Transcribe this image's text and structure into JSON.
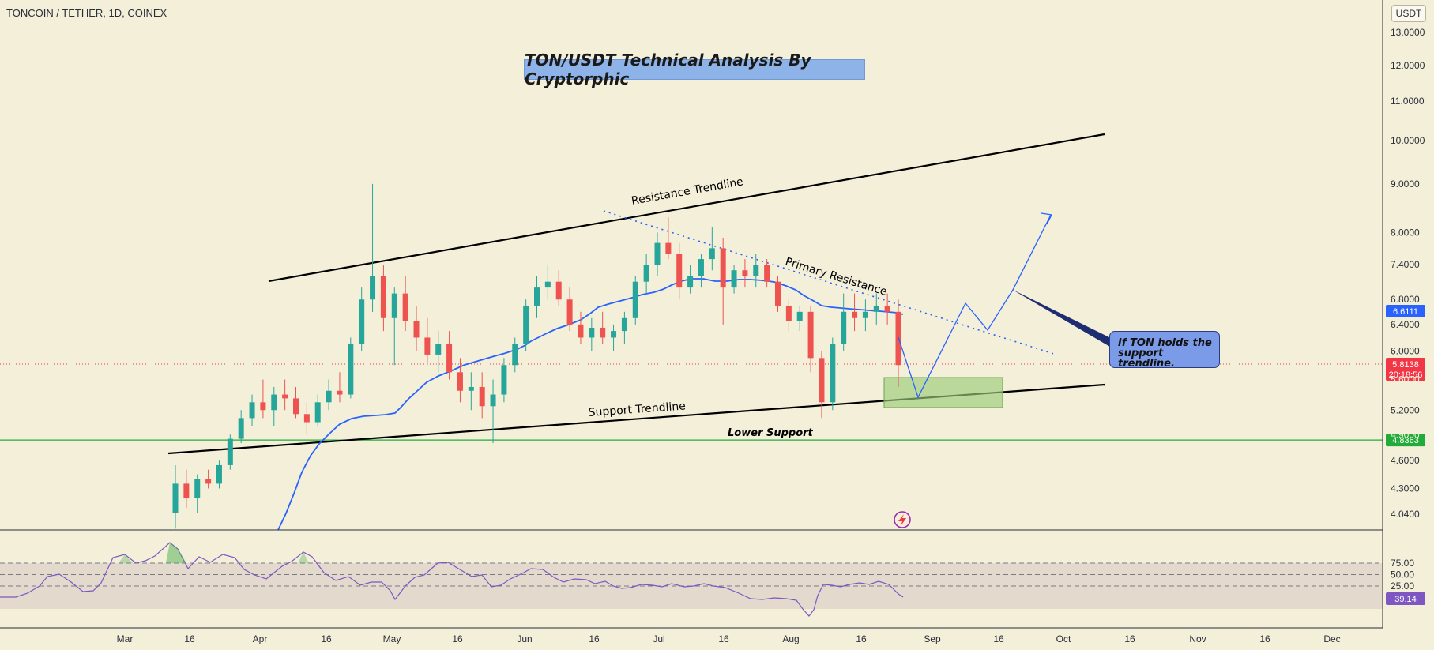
{
  "header": {
    "symbol": "TONCOIN / TETHER, 1D, COINEX",
    "unit_button": "USDT"
  },
  "annotations": {
    "title": "TON/USDT Technical Analysis By Cryptorphic",
    "resistance_trendline": "Resistance Trendline",
    "primary_resistance": "Primary Resistance",
    "support_trendline": "Support Trendline",
    "lower_support": "Lower Support",
    "callout_line1": "If TON holds the",
    "callout_line2": "support trendline."
  },
  "colors": {
    "background": "#f3efd9",
    "up_candle": "#26a69a",
    "down_candle": "#ef5350",
    "ema": "#2962ff",
    "rsi": "#7e57c2",
    "support_level": "#22ab3a",
    "price_label": "#f23645",
    "ema_label": "#2962ff",
    "rsi_label": "#7e57c2"
  },
  "chart_data": {
    "type": "candlestick",
    "interval": "1D",
    "y_scale": "log",
    "y_ticks": [
      "13.0000",
      "12.0000",
      "11.0000",
      "10.0000",
      "9.0000",
      "8.0000",
      "7.4000",
      "6.8000",
      "6.4000",
      "6.0000",
      "5.2000",
      "4.6000",
      "4.3000",
      "4.0400"
    ],
    "x_ticks": [
      "Mar",
      "16",
      "Apr",
      "16",
      "May",
      "16",
      "Jun",
      "16",
      "Jul",
      "16",
      "Aug",
      "16",
      "Sep",
      "16",
      "Oct",
      "16",
      "Nov",
      "16",
      "Dec"
    ],
    "price_badges": {
      "ema_value": "6.6111",
      "last_price": "5.8138",
      "countdown": "20:18:56",
      "support_value": "4.8363",
      "hidden_tick": "5.6000",
      "hidden_tick2": "4.9000"
    },
    "series_ohlc_approx": [
      [
        4.05,
        4.55,
        3.9,
        4.35
      ],
      [
        4.35,
        4.5,
        4.1,
        4.2
      ],
      [
        4.2,
        4.45,
        4.05,
        4.4
      ],
      [
        4.4,
        4.5,
        4.3,
        4.35
      ],
      [
        4.35,
        4.6,
        4.3,
        4.55
      ],
      [
        4.55,
        4.9,
        4.5,
        4.85
      ],
      [
        4.85,
        5.2,
        4.8,
        5.1
      ],
      [
        5.1,
        5.4,
        5.0,
        5.3
      ],
      [
        5.3,
        5.6,
        5.1,
        5.2
      ],
      [
        5.2,
        5.5,
        5.0,
        5.4
      ],
      [
        5.4,
        5.6,
        5.2,
        5.35
      ],
      [
        5.35,
        5.5,
        5.1,
        5.15
      ],
      [
        5.15,
        5.3,
        4.9,
        5.05
      ],
      [
        5.05,
        5.4,
        5.0,
        5.3
      ],
      [
        5.3,
        5.6,
        5.2,
        5.45
      ],
      [
        5.45,
        5.7,
        5.3,
        5.4
      ],
      [
        5.4,
        6.2,
        5.35,
        6.1
      ],
      [
        6.1,
        7.0,
        6.0,
        6.8
      ],
      [
        6.8,
        9.0,
        6.6,
        7.2
      ],
      [
        7.2,
        7.4,
        6.3,
        6.5
      ],
      [
        6.5,
        7.0,
        5.8,
        6.9
      ],
      [
        6.9,
        7.2,
        6.3,
        6.45
      ],
      [
        6.45,
        6.7,
        6.0,
        6.2
      ],
      [
        6.2,
        6.5,
        5.8,
        5.95
      ],
      [
        5.95,
        6.3,
        5.7,
        6.1
      ],
      [
        6.1,
        6.3,
        5.6,
        5.7
      ],
      [
        5.7,
        5.9,
        5.3,
        5.45
      ],
      [
        5.45,
        5.7,
        5.2,
        5.5
      ],
      [
        5.5,
        5.7,
        5.1,
        5.25
      ],
      [
        5.25,
        5.6,
        4.8,
        5.4
      ],
      [
        5.4,
        5.9,
        5.3,
        5.8
      ],
      [
        5.8,
        6.2,
        5.7,
        6.1
      ],
      [
        6.1,
        6.8,
        6.0,
        6.7
      ],
      [
        6.7,
        7.2,
        6.5,
        7.0
      ],
      [
        7.0,
        7.4,
        6.8,
        7.1
      ],
      [
        7.1,
        7.3,
        6.7,
        6.8
      ],
      [
        6.8,
        7.0,
        6.3,
        6.4
      ],
      [
        6.4,
        6.6,
        6.1,
        6.2
      ],
      [
        6.2,
        6.5,
        6.0,
        6.35
      ],
      [
        6.35,
        6.6,
        6.1,
        6.2
      ],
      [
        6.2,
        6.4,
        6.0,
        6.3
      ],
      [
        6.3,
        6.6,
        6.1,
        6.5
      ],
      [
        6.5,
        7.2,
        6.4,
        7.1
      ],
      [
        7.1,
        7.6,
        6.9,
        7.4
      ],
      [
        7.4,
        8.0,
        7.2,
        7.8
      ],
      [
        7.8,
        8.3,
        7.5,
        7.6
      ],
      [
        7.6,
        7.8,
        6.8,
        7.0
      ],
      [
        7.0,
        7.4,
        6.9,
        7.2
      ],
      [
        7.2,
        7.6,
        7.0,
        7.5
      ],
      [
        7.5,
        8.1,
        7.3,
        7.7
      ],
      [
        7.7,
        7.9,
        6.4,
        7.0
      ],
      [
        7.0,
        7.4,
        6.9,
        7.3
      ],
      [
        7.3,
        7.5,
        7.0,
        7.2
      ],
      [
        7.2,
        7.6,
        7.0,
        7.4
      ],
      [
        7.4,
        7.5,
        7.0,
        7.1
      ],
      [
        7.1,
        7.2,
        6.6,
        6.7
      ],
      [
        6.7,
        6.8,
        6.3,
        6.45
      ],
      [
        6.45,
        6.7,
        6.3,
        6.6
      ],
      [
        6.6,
        6.7,
        5.7,
        5.9
      ],
      [
        5.9,
        6.0,
        5.1,
        5.3
      ],
      [
        5.3,
        6.2,
        5.2,
        6.1
      ],
      [
        6.1,
        6.9,
        6.0,
        6.6
      ],
      [
        6.6,
        6.9,
        6.3,
        6.5
      ],
      [
        6.5,
        6.8,
        6.3,
        6.6
      ],
      [
        6.6,
        6.9,
        6.4,
        6.7
      ],
      [
        6.7,
        6.9,
        6.4,
        6.6
      ],
      [
        6.6,
        6.8,
        5.5,
        5.8
      ]
    ]
  },
  "rsi_panel": {
    "levels": [
      "75.00",
      "50.00",
      "25.00"
    ],
    "current": "39.14"
  },
  "footer_badge_icon": "lightning-icon"
}
